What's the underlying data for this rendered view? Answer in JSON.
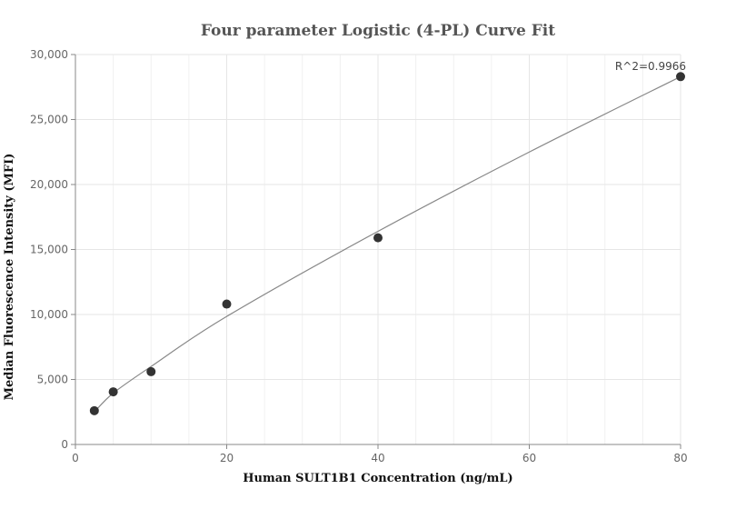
{
  "chart_data": {
    "type": "scatter",
    "title": "Four parameter Logistic (4-PL) Curve Fit",
    "xlabel": "Human SULT1B1 Concentration (ng/mL)",
    "ylabel": "Median Fluorescence Intensity (MFI)",
    "xlim": [
      0,
      80
    ],
    "ylim": [
      0,
      30000
    ],
    "xticks": [
      0,
      20,
      40,
      60,
      80
    ],
    "xtick_labels": [
      "0",
      "20",
      "40",
      "60",
      "80"
    ],
    "yticks": [
      0,
      5000,
      10000,
      15000,
      20000,
      25000,
      30000
    ],
    "ytick_labels": [
      "0",
      "5,000",
      "10,000",
      "15,000",
      "20,000",
      "25,000",
      "30,000"
    ],
    "grid": true,
    "series": [
      {
        "type": "scatter",
        "x": [
          2.5,
          5,
          10,
          20,
          40,
          80
        ],
        "y": [
          2600,
          4050,
          5600,
          10800,
          15900,
          28300
        ],
        "color": "#333333"
      },
      {
        "type": "line",
        "x": [
          2.5,
          5,
          10,
          20,
          40,
          60,
          80
        ],
        "y": [
          2500,
          3950,
          6000,
          9850,
          16400,
          22500,
          28300
        ],
        "color": "#888888"
      }
    ],
    "annotation": {
      "text": "R^2=0.9966"
    }
  }
}
